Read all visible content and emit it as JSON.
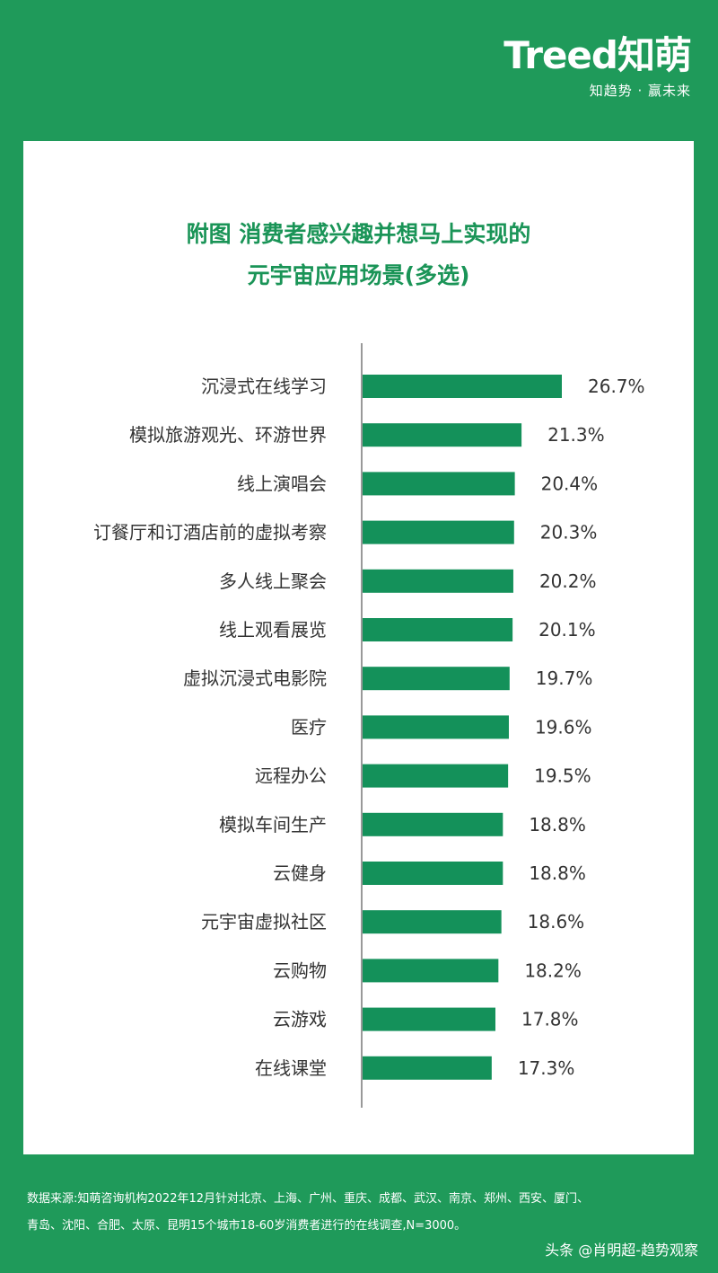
{
  "logo": {
    "mark": "Treed知萌",
    "tagline": "知趋势 · 赢未来"
  },
  "title_lines": [
    "附图 消费者感兴趣并想马上实现的",
    "元宇宙应用场景(多选)"
  ],
  "chart_data": {
    "type": "bar",
    "orientation": "horizontal",
    "title": "附图 消费者感兴趣并想马上实现的元宇宙应用场景(多选)",
    "categories": [
      "沉浸式在线学习",
      "模拟旅游观光、环游世界",
      "线上演唱会",
      "订餐厅和订酒店前的虚拟考察",
      "多人线上聚会",
      "线上观看展览",
      "虚拟沉浸式电影院",
      "医疗",
      "远程办公",
      "模拟车间生产",
      "云健身",
      "元宇宙虚拟社区",
      "云购物",
      "云游戏",
      "在线课堂"
    ],
    "values": [
      26.7,
      21.3,
      20.4,
      20.3,
      20.2,
      20.1,
      19.7,
      19.6,
      19.5,
      18.8,
      18.8,
      18.6,
      18.2,
      17.8,
      17.3
    ],
    "value_labels": [
      "26.7%",
      "21.3%",
      "20.4%",
      "20.3%",
      "20.2%",
      "20.1%",
      "19.7%",
      "19.6%",
      "19.5%",
      "18.8%",
      "18.8%",
      "18.6%",
      "18.2%",
      "17.8%",
      "17.3%"
    ],
    "unit": "%",
    "xlim": [
      0,
      30
    ],
    "grid": false,
    "colors": {
      "bar": "#14915a",
      "axis": "#999999"
    }
  },
  "footer": {
    "line1": "数据来源:知萌咨询机构2022年12月针对北京、上海、广州、重庆、成都、武汉、南京、郑州、西安、厦门、",
    "line2": "青岛、沈阳、合肥、太原、昆明15个城市18-60岁消费者进行的在线调查,N=3000。"
  },
  "attribution": "头条 @肖明超-趋势观察"
}
